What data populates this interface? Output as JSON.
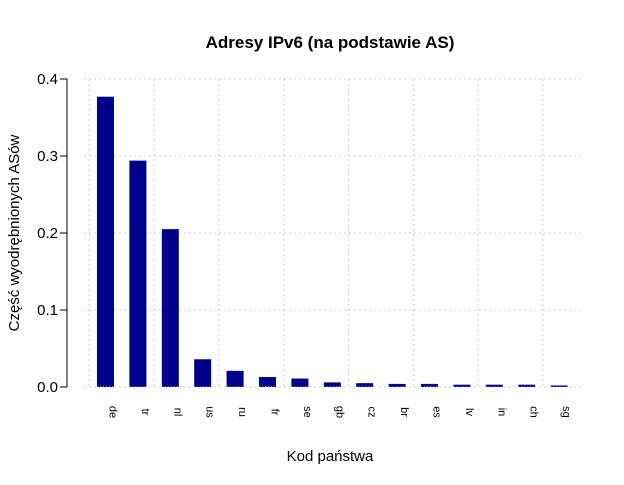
{
  "chart_data": {
    "type": "bar",
    "title": "Adresy IPv6 (na podstawie AS)",
    "xlabel": "Kod państwa",
    "ylabel": "Część wyodrębnionych ASów",
    "categories": [
      "de",
      "tr",
      "nl",
      "us",
      "ru",
      "fr",
      "se",
      "gb",
      "cz",
      "br",
      "es",
      "lv",
      "in",
      "ch",
      "sg"
    ],
    "values": [
      0.377,
      0.294,
      0.205,
      0.036,
      0.021,
      0.013,
      0.011,
      0.006,
      0.005,
      0.004,
      0.004,
      0.003,
      0.003,
      0.003,
      0.002
    ],
    "ylim": [
      0,
      0.4
    ],
    "yticks": [
      "0.0",
      "0.1",
      "0.2",
      "0.3",
      "0.4"
    ],
    "ytick_values": [
      0,
      0.1,
      0.2,
      0.3,
      0.4
    ],
    "grid": true,
    "bar_color": "#00008B",
    "grid_color": "#cccccc"
  }
}
